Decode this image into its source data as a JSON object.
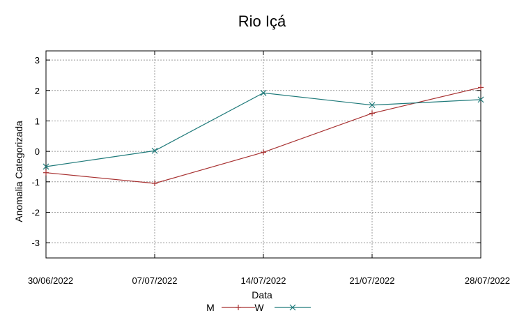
{
  "chart_data": {
    "type": "line",
    "title": "Rio Içá",
    "xlabel": "Data",
    "ylabel": "Anomalia Categorizada",
    "categories": [
      "30/06/2022",
      "07/07/2022",
      "14/07/2022",
      "21/07/2022",
      "28/07/2022"
    ],
    "yticks": [
      "3",
      "2",
      "1",
      "0",
      "-1",
      "-2",
      "-3"
    ],
    "ylim": [
      -3.5,
      3.3
    ],
    "grid": true,
    "legend_position": "bottom-center",
    "series": [
      {
        "name": "M",
        "color": "#a83232",
        "marker": "plus",
        "values": [
          -0.7,
          -1.05,
          -0.03,
          1.25,
          2.1
        ]
      },
      {
        "name": "W",
        "color": "#1f7a7a",
        "marker": "x",
        "values": [
          -0.5,
          0.02,
          1.92,
          1.52,
          1.7
        ]
      }
    ]
  }
}
